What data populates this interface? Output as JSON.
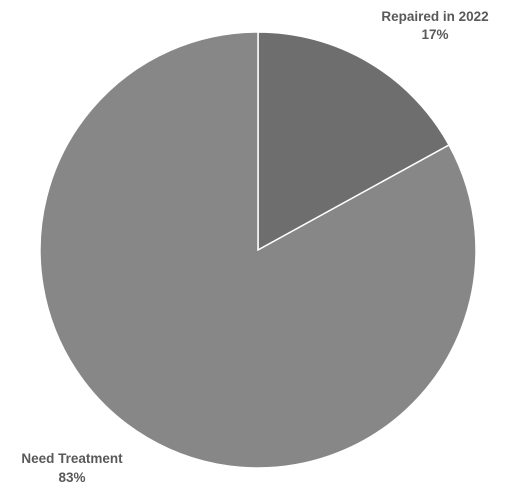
{
  "chart_data": {
    "type": "pie",
    "slices": [
      {
        "label": "Repaired in 2022",
        "value": 17,
        "value_label": "17%",
        "color": "#6e6e6e"
      },
      {
        "label": "Need Treatment",
        "value": 83,
        "value_label": "83%",
        "color": "#878787"
      }
    ],
    "start_angle_deg": 0,
    "direction": "clockwise",
    "legend": "none",
    "label_color": "#595959",
    "background": "#ffffff"
  }
}
